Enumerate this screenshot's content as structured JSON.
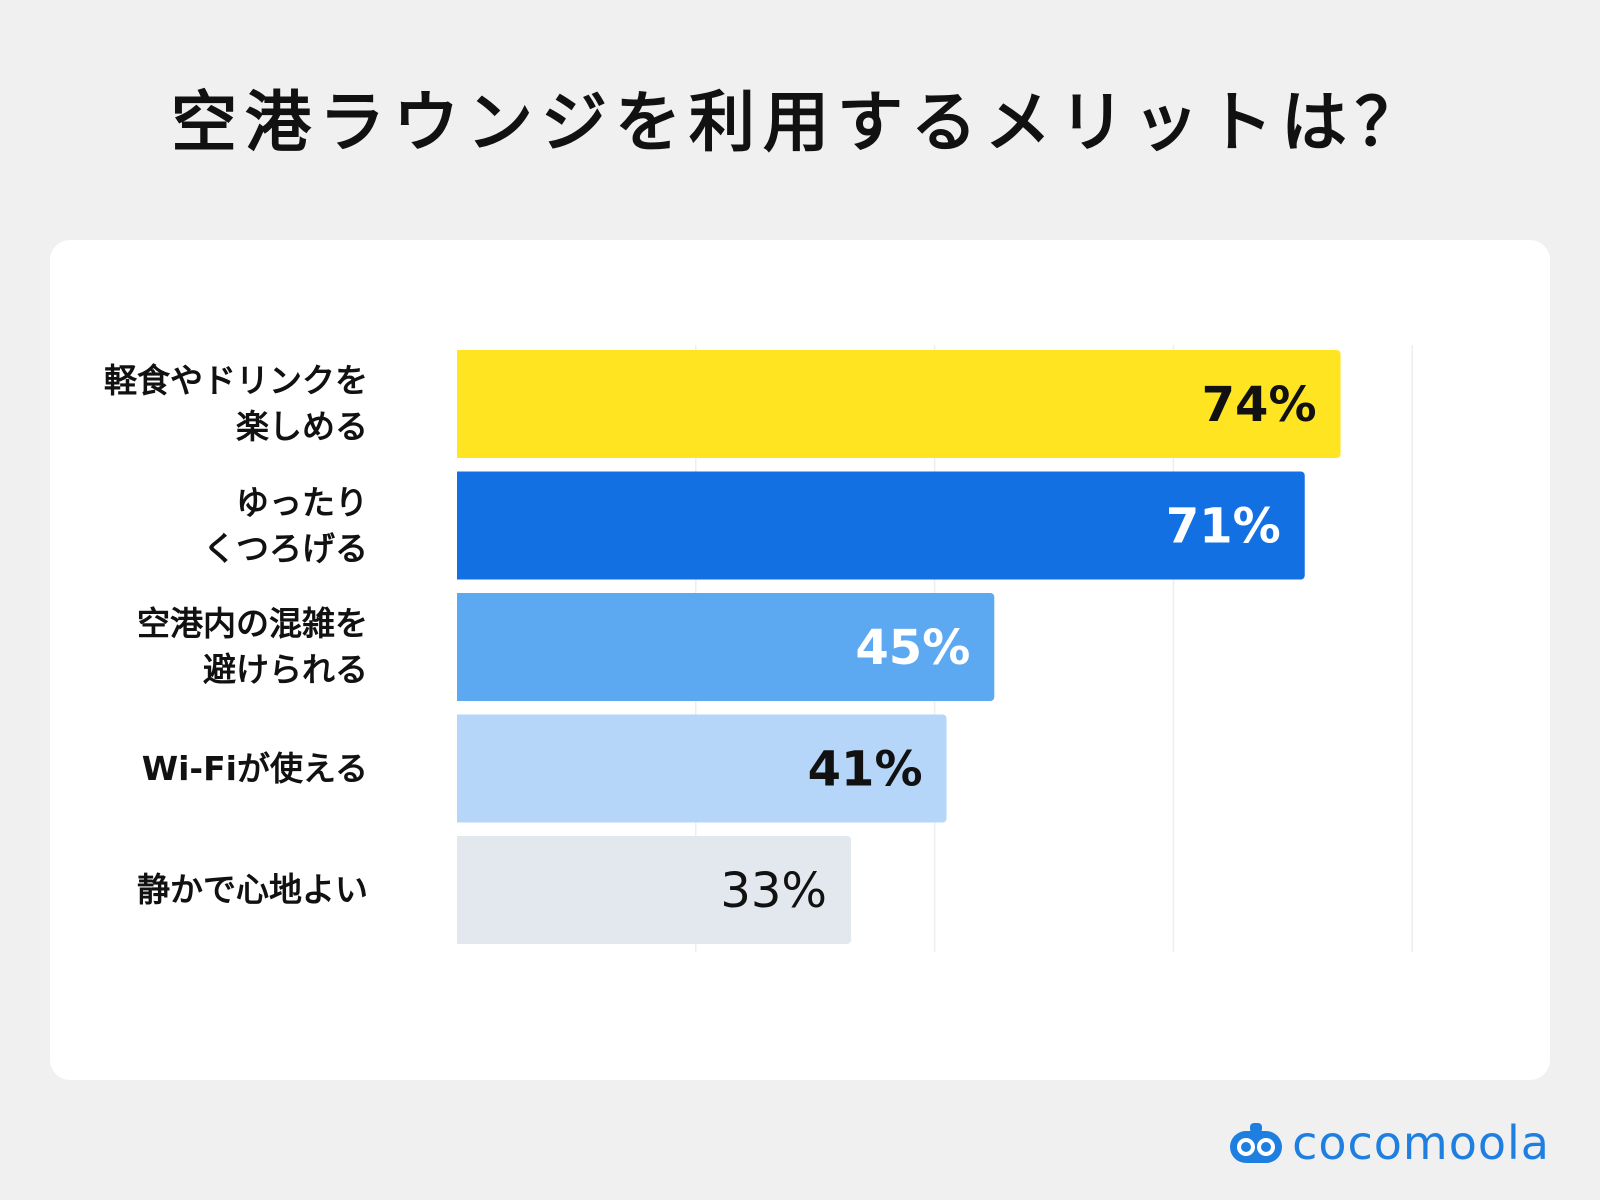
{
  "title": "空港ラウンジを利用するメリットは？",
  "brand": {
    "name": "cocomoola",
    "icon": "cocomoola-logo-icon",
    "color": "#1f7fe0"
  },
  "chart_data": {
    "type": "bar",
    "orientation": "horizontal",
    "categories": [
      "軽食やドリンクを\n楽しめる",
      "ゆったり\nくつろげる",
      "空港内の混雑を\n避けられる",
      "Wi-Fiが使える",
      "静かで心地よい"
    ],
    "values": [
      74,
      71,
      45,
      41,
      33
    ],
    "value_labels": [
      "74%",
      "71%",
      "45%",
      "41%",
      "33%"
    ],
    "unit": "%",
    "xlim": [
      0,
      80
    ],
    "grid": true,
    "legend": "none",
    "bar_colors": [
      "#ffe422",
      "#1270e3",
      "#5da9f1",
      "#b5d6f8",
      "#e3e7ee"
    ],
    "label_colors": [
      "#111111",
      "#ffffff",
      "#ffffff",
      "#111111",
      "#111111"
    ]
  }
}
